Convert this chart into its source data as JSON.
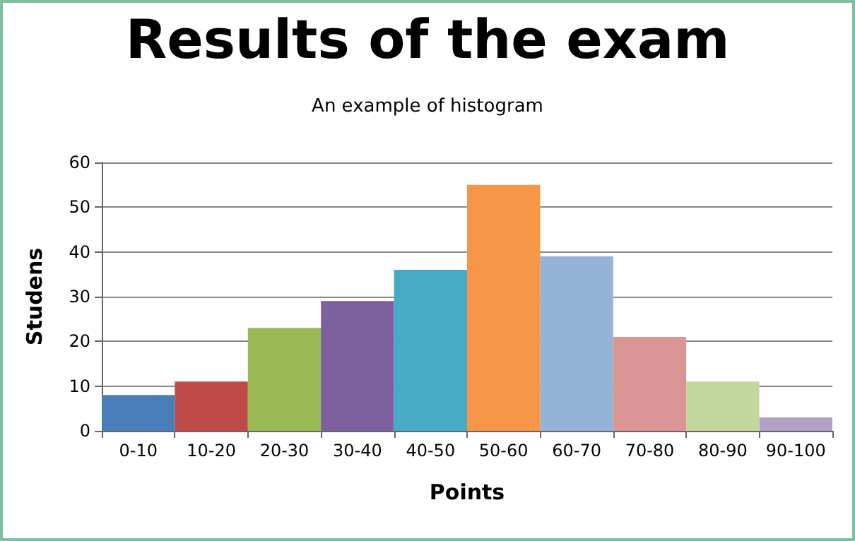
{
  "chart_data": {
    "type": "bar",
    "title": "Results of the exam",
    "subtitle": "An example of histogram",
    "xlabel": "Points",
    "ylabel": "Studens",
    "categories": [
      "0-10",
      "10-20",
      "20-30",
      "30-40",
      "40-50",
      "50-60",
      "60-70",
      "70-80",
      "80-90",
      "90-100"
    ],
    "values": [
      8,
      11,
      23,
      29,
      36,
      55,
      39,
      21,
      11,
      3
    ],
    "colors": [
      "#4a7ebb",
      "#be4b48",
      "#98b954",
      "#7d60a0",
      "#46aac5",
      "#f79646",
      "#95b3d7",
      "#d99694",
      "#c3d69b",
      "#b3a2c7"
    ],
    "ylim": [
      0,
      60
    ],
    "yticks": [
      0,
      10,
      20,
      30,
      40,
      50,
      60
    ],
    "grid": "y"
  }
}
